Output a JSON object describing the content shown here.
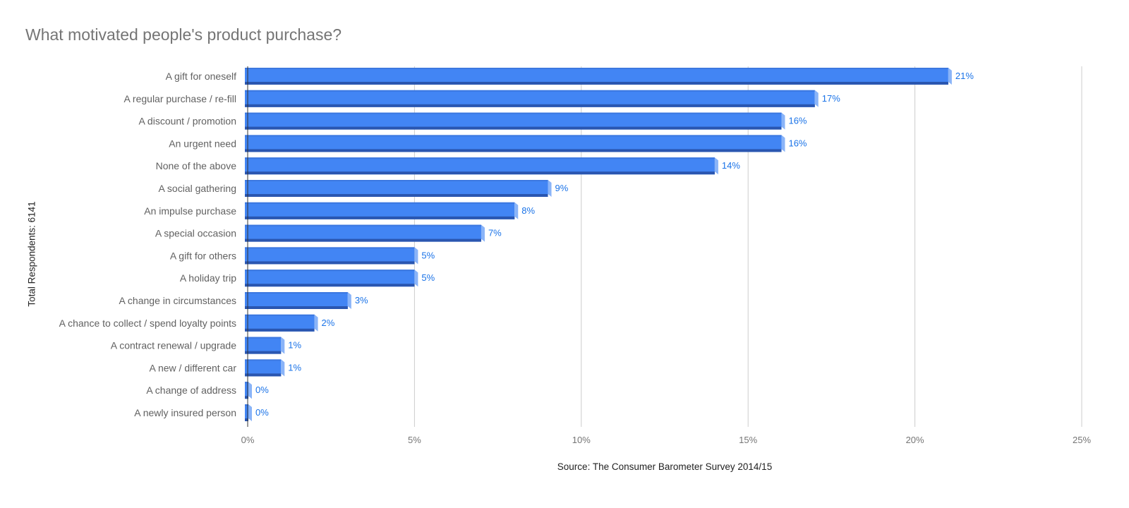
{
  "chart_data": {
    "type": "bar",
    "orientation": "horizontal",
    "title": "What motivated people's product purchase?",
    "ylabel": "Total Respondents: 6141",
    "xlabel": "Source: The Consumer Barometer Survey 2014/15",
    "categories": [
      "A gift for oneself",
      "A regular purchase / re-fill",
      "A discount / promotion",
      "An urgent need",
      "None of the above",
      "A social gathering",
      "An impulse purchase",
      "A special occasion",
      "A gift for others",
      "A holiday trip",
      "A change in circumstances",
      "A chance to collect / spend loyalty points",
      "A contract renewal / upgrade",
      "A new / different car",
      "A change of address",
      "A newly insured person"
    ],
    "values": [
      21,
      17,
      16,
      16,
      14,
      9,
      8,
      7,
      5,
      5,
      3,
      2,
      1,
      1,
      0,
      0
    ],
    "data_labels": [
      "21%",
      "17%",
      "16%",
      "16%",
      "14%",
      "9%",
      "8%",
      "7%",
      "5%",
      "5%",
      "3%",
      "2%",
      "1%",
      "1%",
      "0%",
      "0%"
    ],
    "xlim": [
      0,
      25
    ],
    "x_ticks": [
      0,
      5,
      10,
      15,
      20,
      25
    ],
    "x_tick_labels": [
      "0%",
      "5%",
      "10%",
      "15%",
      "20%",
      "25%"
    ],
    "grid": true,
    "legend": "none",
    "colors": {
      "bar_front": "#4285f4",
      "bar_top": "#3c78e0",
      "bar_bottom": "#2a56b0",
      "bar_side": "#8ab4f8",
      "data_label": "#1a73e8",
      "grid": "#cccccc",
      "axis": "#333333"
    }
  }
}
